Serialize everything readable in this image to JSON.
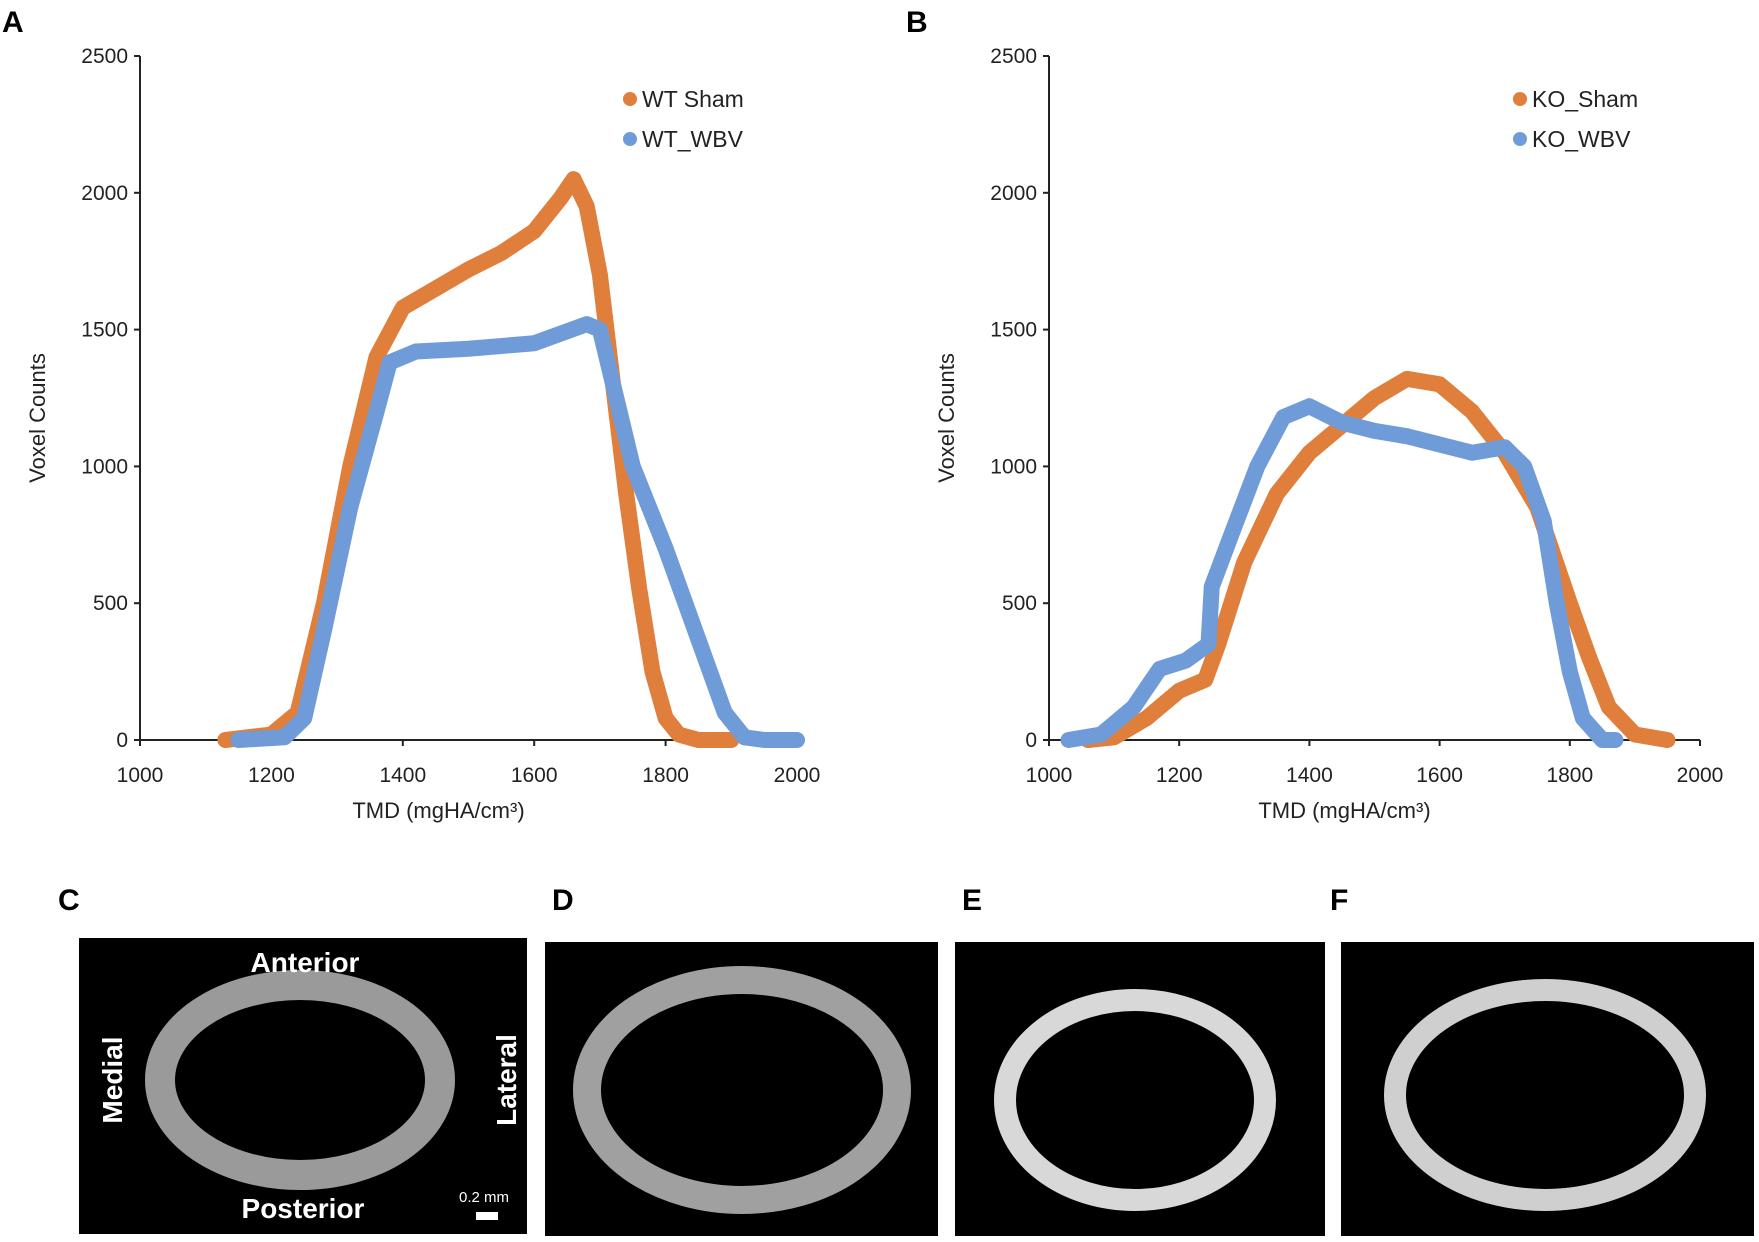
{
  "colors": {
    "orange": "#E07E3C",
    "blue": "#6F9CD8"
  },
  "chart_data": [
    {
      "panel": "A",
      "type": "scatter",
      "xlabel": "TMD (mgHA/cm³)",
      "ylabel": "Voxel Counts",
      "xlim": [
        1000,
        2000
      ],
      "ylim": [
        0,
        2500
      ],
      "xticks": [
        "1000",
        "1200",
        "1400",
        "1600",
        "1800",
        "2000"
      ],
      "yticks": [
        "0",
        "500",
        "1000",
        "1500",
        "2000",
        "2500"
      ],
      "legend": "top-right",
      "series": [
        {
          "name": "WT Sham",
          "color": "orange",
          "points": [
            [
              1130,
              0
            ],
            [
              1200,
              20
            ],
            [
              1240,
              100
            ],
            [
              1280,
              500
            ],
            [
              1320,
              1000
            ],
            [
              1360,
              1400
            ],
            [
              1400,
              1580
            ],
            [
              1450,
              1650
            ],
            [
              1500,
              1720
            ],
            [
              1550,
              1780
            ],
            [
              1600,
              1860
            ],
            [
              1640,
              1980
            ],
            [
              1660,
              2050
            ],
            [
              1680,
              1950
            ],
            [
              1700,
              1700
            ],
            [
              1720,
              1300
            ],
            [
              1740,
              900
            ],
            [
              1760,
              550
            ],
            [
              1780,
              250
            ],
            [
              1800,
              80
            ],
            [
              1820,
              20
            ],
            [
              1850,
              0
            ],
            [
              1900,
              0
            ]
          ]
        },
        {
          "name": "WT_WBV",
          "color": "blue",
          "points": [
            [
              1150,
              0
            ],
            [
              1220,
              10
            ],
            [
              1250,
              80
            ],
            [
              1280,
              400
            ],
            [
              1320,
              850
            ],
            [
              1360,
              1200
            ],
            [
              1380,
              1380
            ],
            [
              1420,
              1420
            ],
            [
              1500,
              1430
            ],
            [
              1600,
              1450
            ],
            [
              1680,
              1520
            ],
            [
              1700,
              1500
            ],
            [
              1720,
              1300
            ],
            [
              1750,
              1000
            ],
            [
              1780,
              820
            ],
            [
              1800,
              700
            ],
            [
              1830,
              500
            ],
            [
              1860,
              300
            ],
            [
              1890,
              100
            ],
            [
              1920,
              10
            ],
            [
              1950,
              0
            ],
            [
              2000,
              0
            ]
          ]
        }
      ]
    },
    {
      "panel": "B",
      "type": "scatter",
      "xlabel": "TMD (mgHA/cm³)",
      "ylabel": "Voxel Counts",
      "xlim": [
        1000,
        2000
      ],
      "ylim": [
        0,
        2500
      ],
      "xticks": [
        "1000",
        "1200",
        "1400",
        "1600",
        "1800",
        "2000"
      ],
      "yticks": [
        "0",
        "500",
        "1000",
        "1500",
        "2000",
        "2500"
      ],
      "legend": "top-right",
      "series": [
        {
          "name": "KO_Sham",
          "color": "orange",
          "points": [
            [
              1060,
              0
            ],
            [
              1100,
              10
            ],
            [
              1150,
              80
            ],
            [
              1200,
              180
            ],
            [
              1240,
              220
            ],
            [
              1260,
              350
            ],
            [
              1300,
              650
            ],
            [
              1350,
              900
            ],
            [
              1400,
              1050
            ],
            [
              1450,
              1150
            ],
            [
              1500,
              1250
            ],
            [
              1550,
              1320
            ],
            [
              1600,
              1300
            ],
            [
              1650,
              1200
            ],
            [
              1700,
              1050
            ],
            [
              1750,
              850
            ],
            [
              1800,
              500
            ],
            [
              1830,
              300
            ],
            [
              1860,
              120
            ],
            [
              1900,
              20
            ],
            [
              1950,
              0
            ]
          ]
        },
        {
          "name": "KO_WBV",
          "color": "blue",
          "points": [
            [
              1030,
              0
            ],
            [
              1080,
              20
            ],
            [
              1130,
              120
            ],
            [
              1170,
              260
            ],
            [
              1210,
              290
            ],
            [
              1245,
              350
            ],
            [
              1250,
              560
            ],
            [
              1280,
              750
            ],
            [
              1320,
              1000
            ],
            [
              1360,
              1180
            ],
            [
              1400,
              1220
            ],
            [
              1450,
              1160
            ],
            [
              1500,
              1130
            ],
            [
              1550,
              1110
            ],
            [
              1600,
              1080
            ],
            [
              1650,
              1050
            ],
            [
              1700,
              1070
            ],
            [
              1730,
              1000
            ],
            [
              1760,
              800
            ],
            [
              1780,
              500
            ],
            [
              1800,
              250
            ],
            [
              1820,
              80
            ],
            [
              1850,
              0
            ],
            [
              1870,
              0
            ]
          ]
        }
      ]
    }
  ],
  "images": {
    "labels": [
      "C",
      "D",
      "E",
      "F"
    ],
    "c_annotations": {
      "top": "Anterior",
      "bottom": "Posterior",
      "left": "Medial",
      "right": "Lateral",
      "scale": "0.2 mm"
    }
  }
}
